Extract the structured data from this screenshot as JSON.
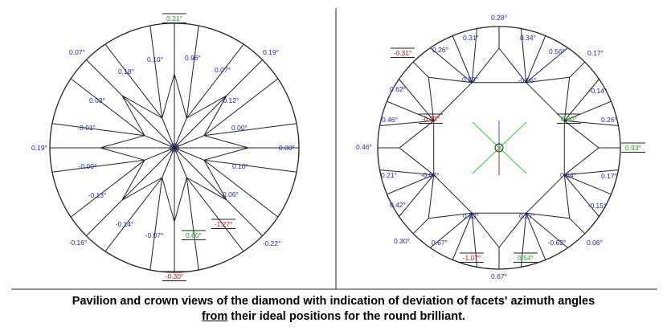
{
  "colors": {
    "blue": "#1a2aa8",
    "green": "#17a317",
    "red": "#cc1111",
    "line": "#222222",
    "crosshair_green": "#33cc33",
    "crosshair_red": "#cc2222",
    "crosshair_blue": "#3355dd"
  },
  "pavilion": {
    "labels": [
      {
        "text": "0.21°",
        "color": "green",
        "boxed": true
      },
      {
        "text": "0.19°",
        "color": "blue"
      },
      {
        "text": "0.07°",
        "color": "blue"
      },
      {
        "text": "0.10°",
        "color": "blue"
      },
      {
        "text": "0.96°",
        "color": "blue"
      },
      {
        "text": "0.07°",
        "color": "blue"
      },
      {
        "text": "0.18°",
        "color": "blue"
      },
      {
        "text": "-0.12°",
        "color": "blue"
      },
      {
        "text": "0.03°",
        "color": "blue"
      },
      {
        "text": "0.00°",
        "color": "blue"
      },
      {
        "text": "0.01°",
        "color": "blue"
      },
      {
        "text": "0.00°",
        "color": "blue"
      },
      {
        "text": "0.19°",
        "color": "blue"
      },
      {
        "text": "0.10°",
        "color": "blue"
      },
      {
        "text": "-0.00°",
        "color": "blue"
      },
      {
        "text": "0.06°",
        "color": "blue"
      },
      {
        "text": "-0.13°",
        "color": "blue"
      },
      {
        "text": "-1.27°",
        "color": "red",
        "boxed": true
      },
      {
        "text": "-0.14°",
        "color": "blue"
      },
      {
        "text": "0.60°",
        "color": "green",
        "boxed": true
      },
      {
        "text": "-0.07°",
        "color": "blue"
      },
      {
        "text": "-0.22°",
        "color": "blue"
      },
      {
        "text": "-0.16°",
        "color": "blue"
      },
      {
        "text": "-0.30°",
        "color": "red",
        "boxed": true
      }
    ]
  },
  "crown": {
    "labels": [
      {
        "text": "0.28°",
        "color": "blue"
      },
      {
        "text": "0.31°",
        "color": "blue"
      },
      {
        "text": "0.34°",
        "color": "blue"
      },
      {
        "text": "-0.31°",
        "color": "red",
        "boxed": true
      },
      {
        "text": "0.26°",
        "color": "blue"
      },
      {
        "text": "0.56°",
        "color": "blue"
      },
      {
        "text": "0.17°",
        "color": "blue"
      },
      {
        "text": "0.30°",
        "color": "blue"
      },
      {
        "text": "-0.06°",
        "color": "blue"
      },
      {
        "text": "0.62°",
        "color": "blue"
      },
      {
        "text": "-0.14°",
        "color": "blue"
      },
      {
        "text": "0.46°",
        "color": "blue"
      },
      {
        "text": "-0.23°",
        "color": "red",
        "boxed": true
      },
      {
        "text": "0.00°",
        "color": "green",
        "boxed": true
      },
      {
        "text": "0.26°",
        "color": "blue"
      },
      {
        "text": "0.46°",
        "color": "blue"
      },
      {
        "text": "0.93°",
        "color": "green",
        "boxed": true
      },
      {
        "text": "0.21°",
        "color": "blue"
      },
      {
        "text": "-0.04°",
        "color": "blue"
      },
      {
        "text": "0.64°",
        "color": "blue"
      },
      {
        "text": "0.17°",
        "color": "blue"
      },
      {
        "text": "0.42°",
        "color": "blue"
      },
      {
        "text": "-0.15°",
        "color": "blue"
      },
      {
        "text": "0.63°",
        "color": "blue"
      },
      {
        "text": "0.27°",
        "color": "blue"
      },
      {
        "text": "0.30°",
        "color": "blue"
      },
      {
        "text": "0.67°",
        "color": "blue"
      },
      {
        "text": "-0.62°",
        "color": "blue"
      },
      {
        "text": "0.06°",
        "color": "blue"
      },
      {
        "text": "-1.07°",
        "color": "red",
        "boxed": true
      },
      {
        "text": "0.54°",
        "color": "green",
        "boxed": true
      },
      {
        "text": "0.67°",
        "color": "blue"
      }
    ]
  },
  "caption": {
    "line1": "Pavilion and crown views of the diamond with indication of deviation of facets' azimuth angles",
    "line2_underlined": "from",
    "line2_rest": " their ideal positions for the round brilliant."
  }
}
